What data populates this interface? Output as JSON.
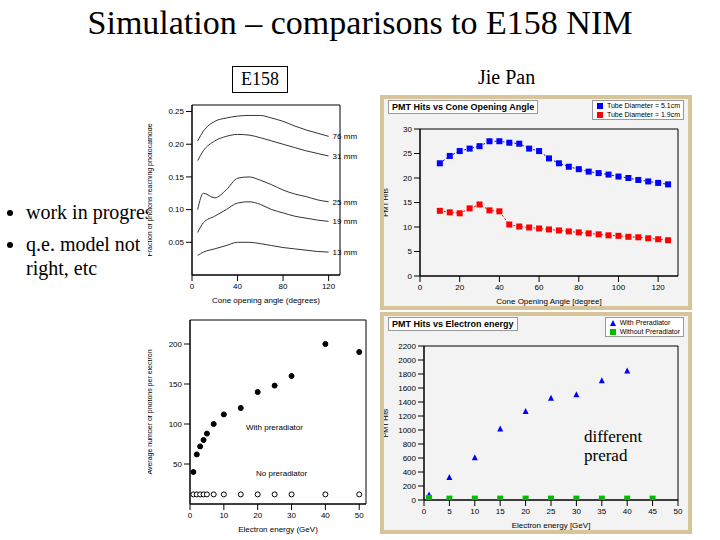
{
  "title": "Simulation – comparisons to E158 NIM",
  "labels": {
    "left": "E158",
    "right": "Jie Pan"
  },
  "bullets": [
    "work in progress",
    "q.e. model not right, etc"
  ],
  "chart_data": [
    {
      "type": "line",
      "x_label": "Cone opening angle (degrees)",
      "y_label": "Fraction of photons reaching photocathode",
      "xlim": [
        0,
        130
      ],
      "xticks": [
        0,
        40,
        80,
        120
      ],
      "ylim": [
        0,
        0.26
      ],
      "yticks": [
        {
          "value": 0.05,
          "label": "0.05"
        },
        {
          "value": 0.1,
          "label": "0.10"
        },
        {
          "value": 0.15,
          "label": "0.15"
        },
        {
          "value": 0.2,
          "label": "0.20"
        },
        {
          "value": 0.25,
          "label": "0.25"
        }
      ],
      "series": [
        {
          "name": "76 mm",
          "color": "#333333",
          "marker": "none",
          "line_style": "solid",
          "x": [
            5,
            10,
            20,
            30,
            40,
            50,
            60,
            70,
            80,
            90,
            100,
            110,
            120
          ],
          "values": [
            0.205,
            0.22,
            0.235,
            0.24,
            0.243,
            0.244,
            0.244,
            0.24,
            0.235,
            0.228,
            0.222,
            0.217,
            0.212
          ]
        },
        {
          "name": "31 mm",
          "color": "#333333",
          "marker": "none",
          "line_style": "solid",
          "x": [
            5,
            10,
            20,
            30,
            40,
            50,
            60,
            70,
            80,
            90,
            100,
            110,
            120
          ],
          "values": [
            0.175,
            0.19,
            0.205,
            0.212,
            0.215,
            0.214,
            0.21,
            0.205,
            0.2,
            0.195,
            0.19,
            0.186,
            0.182
          ]
        },
        {
          "name": "25 mm",
          "color": "#333333",
          "marker": "none",
          "line_style": "solid",
          "x": [
            5,
            10,
            20,
            30,
            40,
            50,
            60,
            70,
            80,
            90,
            100,
            110,
            120
          ],
          "values": [
            0.1,
            0.125,
            0.118,
            0.13,
            0.148,
            0.15,
            0.145,
            0.138,
            0.13,
            0.124,
            0.12,
            0.115,
            0.112
          ]
        },
        {
          "name": "19 mm",
          "color": "#333333",
          "marker": "none",
          "line_style": "solid",
          "x": [
            5,
            10,
            20,
            30,
            40,
            50,
            60,
            70,
            80,
            90,
            100,
            110,
            120
          ],
          "values": [
            0.065,
            0.08,
            0.09,
            0.1,
            0.11,
            0.112,
            0.108,
            0.1,
            0.095,
            0.09,
            0.087,
            0.084,
            0.082
          ]
        },
        {
          "name": "13 mm",
          "color": "#333333",
          "marker": "none",
          "line_style": "solid",
          "x": [
            5,
            10,
            20,
            30,
            40,
            50,
            60,
            70,
            80,
            90,
            100,
            110,
            120
          ],
          "values": [
            0.03,
            0.035,
            0.04,
            0.045,
            0.05,
            0.05,
            0.048,
            0.045,
            0.042,
            0.04,
            0.038,
            0.036,
            0.035
          ]
        }
      ]
    },
    {
      "type": "line",
      "title": "PMT Hits vs Cone Opening Angle",
      "x_label": "Cone Opening Angle [degree]",
      "y_label": "PMT Hits",
      "legend": "top-right",
      "xlim": [
        0,
        130
      ],
      "xticks": [
        0,
        20,
        40,
        60,
        80,
        100,
        120
      ],
      "ylim": [
        0,
        30
      ],
      "yticks": [
        0,
        5,
        10,
        15,
        20,
        25,
        30
      ],
      "series": [
        {
          "name": "Tube Diameter = 5.1cm",
          "color": "#0000ff",
          "marker": "square",
          "line_style": "dotted",
          "x": [
            10,
            15,
            20,
            25,
            30,
            35,
            40,
            45,
            50,
            55,
            60,
            65,
            70,
            75,
            80,
            85,
            90,
            95,
            100,
            105,
            110,
            115,
            120,
            125
          ],
          "values": [
            23,
            24.5,
            25.5,
            26,
            26.5,
            27.5,
            27.5,
            27.2,
            27,
            26,
            25.5,
            24,
            23,
            22.3,
            21.8,
            21.3,
            21,
            20.7,
            20.3,
            20,
            19.6,
            19.3,
            19,
            18.7
          ]
        },
        {
          "name": "Tube Diameter = 1.9cm",
          "color": "#ff0000",
          "marker": "square",
          "line_style": "dotted",
          "x": [
            10,
            15,
            20,
            25,
            30,
            35,
            40,
            45,
            50,
            55,
            60,
            65,
            70,
            75,
            80,
            85,
            90,
            95,
            100,
            105,
            110,
            115,
            120,
            125
          ],
          "values": [
            13.3,
            13,
            12.8,
            13.8,
            14.6,
            13.4,
            13.2,
            10.5,
            10.1,
            9.9,
            9.7,
            9.5,
            9.3,
            9.1,
            8.9,
            8.7,
            8.5,
            8.3,
            8.2,
            8,
            7.9,
            7.7,
            7.5,
            7.3
          ]
        }
      ]
    },
    {
      "type": "scatter",
      "x_label": "Electron energy (GeV)",
      "y_label": "Average number of photons per electron",
      "annotations": [
        "With preradiator",
        "No preradiator"
      ],
      "xlim": [
        0,
        52
      ],
      "xticks": [
        0,
        10,
        20,
        30,
        40,
        50
      ],
      "ylim": [
        0,
        230
      ],
      "yticks": [
        50,
        100,
        150,
        200
      ],
      "series": [
        {
          "name": "With preradiator",
          "color": "#000000",
          "marker": "circle",
          "line_style": "none",
          "x": [
            1,
            2,
            3,
            4,
            5,
            7,
            10,
            15,
            20,
            25,
            30,
            40,
            50
          ],
          "values": [
            40,
            62,
            72,
            80,
            88,
            100,
            112,
            120,
            140,
            148,
            160,
            200,
            190
          ]
        },
        {
          "name": "No preradiator",
          "color": "#000000",
          "marker": "open_circle",
          "line_style": "none",
          "x": [
            1,
            2,
            3,
            4,
            5,
            7,
            10,
            15,
            20,
            25,
            30,
            40,
            50
          ],
          "values": [
            12,
            12,
            12,
            12,
            12,
            12,
            12,
            12,
            12,
            12,
            12,
            12,
            12
          ]
        }
      ]
    },
    {
      "type": "scatter",
      "title": "PMT Hits vs Electron energy",
      "x_label": "Electron energy [GeV]",
      "y_label": "PMT Hits",
      "legend": "top-right",
      "annotations": [
        "different prerad"
      ],
      "xlim": [
        0,
        50
      ],
      "xticks": [
        0,
        5,
        10,
        15,
        20,
        25,
        30,
        35,
        40,
        45,
        50
      ],
      "ylim": [
        0,
        2200
      ],
      "yticks": [
        0,
        200,
        400,
        600,
        800,
        1000,
        1200,
        1400,
        1600,
        1800,
        2000,
        2200
      ],
      "series": [
        {
          "name": "With Preradiator",
          "color": "#0000ff",
          "marker": "triangle",
          "line_style": "none",
          "x": [
            1,
            5,
            10,
            15,
            20,
            25,
            30,
            35,
            40
          ],
          "values": [
            80,
            330,
            610,
            1020,
            1270,
            1460,
            1510,
            1710,
            1850
          ]
        },
        {
          "name": "Without Preradiator",
          "color": "#00bb00",
          "marker": "square",
          "line_style": "none",
          "x": [
            1,
            5,
            10,
            15,
            20,
            25,
            30,
            35,
            40,
            45
          ],
          "values": [
            30,
            20,
            20,
            20,
            20,
            20,
            20,
            20,
            20,
            20
          ]
        }
      ]
    }
  ]
}
